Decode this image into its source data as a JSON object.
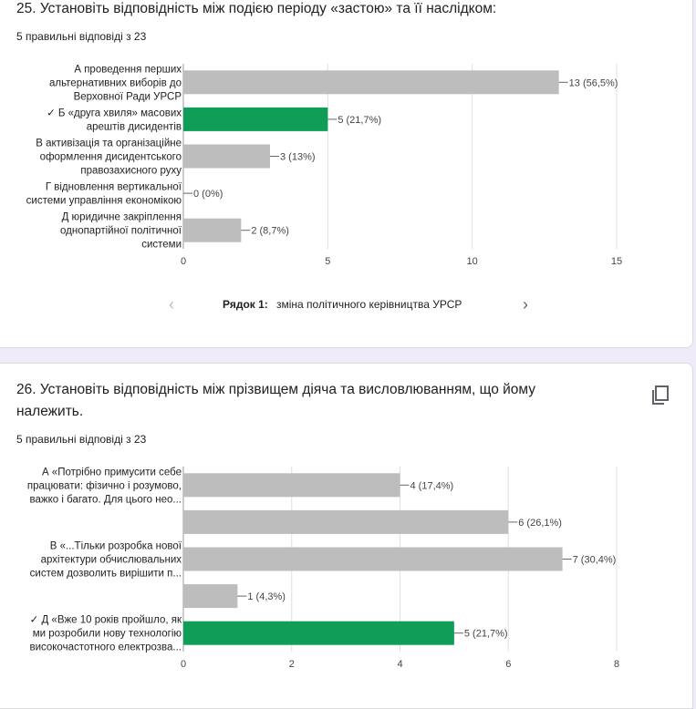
{
  "questions": [
    {
      "title": "25. Установіть відповідність між подією періоду «застою» та її наслідком:",
      "subtitle": "5 правильні відповіді з 23",
      "pager": {
        "label": "Рядок 1:",
        "value": "зміна політичного керівництва УРСР",
        "prev_icon": "chevron-left-icon",
        "next_icon": "chevron-right-icon"
      }
    },
    {
      "title": "26. Установіть відповідність між прізвищем діяча та висловлюванням, що йому належить.",
      "subtitle": "5 правильні відповіді з 23",
      "copy_icon": "copy-chart-icon"
    }
  ],
  "colors": {
    "bar_gray": "#bdbdbd",
    "bar_correct": "#0f9d58",
    "axis": "#999999",
    "grid": "#e0e0e0"
  },
  "chart_data": [
    {
      "type": "bar",
      "orientation": "horizontal",
      "categories": [
        [
          "А проведення перших",
          "альтернативних виборів до",
          "Верховної Ради УРСР"
        ],
        [
          "✓ Б «друга хвиля» масових",
          "арештів дисидентів"
        ],
        [
          "В активізація та організаційне",
          "оформлення дисидентського",
          "правозахисного руху"
        ],
        [
          "Г відновлення вертикальної",
          "системи управління економікою"
        ],
        [
          "Д юридичне закріплення",
          "однопартійної політичної",
          "системи"
        ]
      ],
      "values": [
        13,
        5,
        3,
        0,
        2
      ],
      "value_labels": [
        "13 (56,5%)",
        "5 (21,7%)",
        "3 (13%)",
        "0 (0%)",
        "2 (8,7%)"
      ],
      "correct": [
        false,
        true,
        false,
        false,
        false
      ],
      "xlim": [
        0,
        15
      ],
      "xticks": [
        "0",
        "5",
        "10",
        "15"
      ]
    },
    {
      "type": "bar",
      "orientation": "horizontal",
      "categories": [
        [
          "А «Потрібно примусити себе",
          "працювати: фізично і розумово,",
          "важко і багато. Для цього нео..."
        ],
        [],
        [
          "В «...Тільки розробка нової",
          "архітектури обчислювальних",
          "систем дозволить вирішити п..."
        ],
        [],
        [
          "✓ Д «Вже 10 років пройшло, як",
          "ми розробили нову технологію",
          "високочастотного електрозва..."
        ]
      ],
      "values": [
        4,
        6,
        7,
        1,
        5
      ],
      "value_labels": [
        "4 (17,4%)",
        "6 (26,1%)",
        "7 (30,4%)",
        "1 (4,3%)",
        "5 (21,7%)"
      ],
      "correct": [
        false,
        false,
        false,
        false,
        true
      ],
      "xlim": [
        0,
        8
      ],
      "xticks": [
        "0",
        "2",
        "4",
        "6",
        "8"
      ]
    }
  ]
}
